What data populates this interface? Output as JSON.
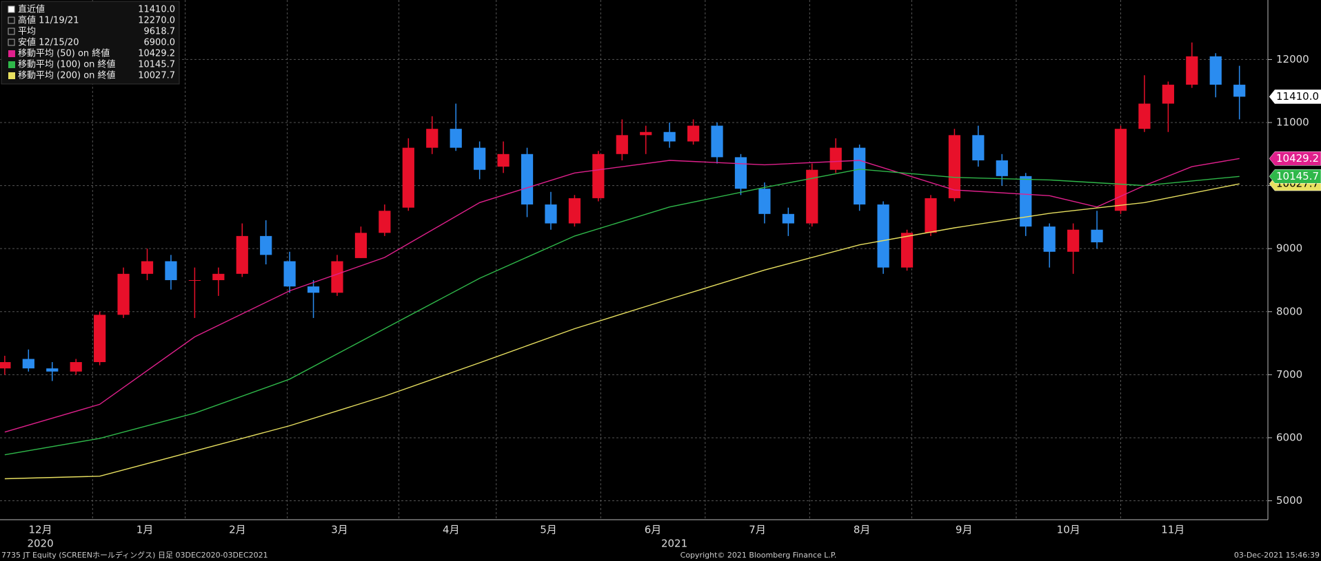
{
  "chart_data": {
    "type": "candlestick",
    "up_color": "#e8102a",
    "down_color": "#2a8cf0",
    "open": [
      7100,
      7250,
      7100,
      7050,
      7200,
      7950,
      8600,
      8800,
      8500,
      8500,
      8600,
      9200,
      8800,
      8400,
      8300,
      8850,
      9250,
      9650,
      10600,
      10900,
      10600,
      10300,
      10500,
      9700,
      9400,
      9800,
      10500,
      10800,
      10850,
      10700,
      10950,
      10450,
      9950,
      9550,
      9400,
      10250,
      10600,
      9700,
      8700,
      9250,
      9800,
      10800,
      10400,
      10150,
      9350,
      8950,
      9300,
      9600,
      10900,
      11300,
      11600,
      12050,
      11600
    ],
    "high": [
      7300,
      7400,
      7200,
      7250,
      8000,
      8700,
      9000,
      8900,
      8700,
      8700,
      9400,
      9450,
      8950,
      8500,
      8900,
      9350,
      9700,
      10750,
      11100,
      11300,
      10700,
      10700,
      10600,
      9900,
      9850,
      10550,
      11050,
      10950,
      11000,
      11050,
      11000,
      10500,
      10050,
      9650,
      10350,
      10750,
      10650,
      9750,
      9300,
      9850,
      10900,
      10950,
      10500,
      10200,
      9400,
      9400,
      9600,
      10950,
      11750,
      11650,
      12270,
      12100,
      11900
    ],
    "low": [
      7000,
      7050,
      6900,
      7000,
      7150,
      7900,
      8500,
      8350,
      7900,
      8250,
      8550,
      8750,
      8300,
      7900,
      8250,
      8850,
      9200,
      9600,
      10500,
      10550,
      10100,
      10200,
      9500,
      9300,
      9350,
      9750,
      10400,
      10500,
      10600,
      10650,
      10350,
      9850,
      9400,
      9200,
      9350,
      10200,
      9600,
      8600,
      8650,
      9200,
      9750,
      10300,
      10000,
      9200,
      8700,
      8600,
      9000,
      9550,
      10850,
      10850,
      11550,
      11400,
      11050
    ],
    "close": [
      7200,
      7100,
      7050,
      7200,
      7950,
      8600,
      8800,
      8500,
      8500,
      8600,
      9200,
      8900,
      8400,
      8300,
      8800,
      9250,
      9600,
      10600,
      10900,
      10600,
      10250,
      10500,
      9700,
      9400,
      9800,
      10500,
      10800,
      10850,
      10700,
      10950,
      10450,
      9950,
      9550,
      9400,
      10250,
      10600,
      9700,
      8700,
      9250,
      9800,
      10800,
      10400,
      10150,
      9350,
      8950,
      9300,
      9100,
      10900,
      11300,
      11600,
      12050,
      11600,
      11410
    ],
    "lines": [
      {
        "name": "移動平均 (50) on 終値",
        "color": "#e0208c",
        "x": [
          0,
          4,
          8,
          12,
          16,
          20,
          24,
          28,
          32,
          36,
          40,
          44,
          46,
          48,
          50,
          52
        ],
        "values": [
          6090,
          6530,
          7600,
          8330,
          8860,
          9730,
          10200,
          10400,
          10330,
          10400,
          9930,
          9840,
          9660,
          10000,
          10300,
          10429.2
        ]
      },
      {
        "name": "移動平均 (100) on 終値",
        "color": "#2fb84a",
        "x": [
          0,
          4,
          8,
          12,
          16,
          20,
          24,
          28,
          32,
          36,
          40,
          44,
          48,
          52
        ],
        "values": [
          5730,
          5990,
          6390,
          6930,
          7730,
          8530,
          9200,
          9660,
          9970,
          10260,
          10130,
          10090,
          10000,
          10145.7
        ]
      },
      {
        "name": "移動平均 (200) on 終値",
        "color": "#e8e060",
        "x": [
          0,
          4,
          8,
          12,
          16,
          20,
          24,
          28,
          32,
          36,
          40,
          44,
          48,
          52
        ],
        "values": [
          5350,
          5390,
          5790,
          6190,
          6660,
          7190,
          7730,
          8200,
          8660,
          9060,
          9330,
          9560,
          9730,
          10027.7
        ]
      }
    ],
    "ylim": [
      4700,
      12900
    ],
    "yticks": [
      5000,
      6000,
      7000,
      8000,
      9000,
      10000,
      11000,
      12000
    ],
    "xlim": [
      -0.2,
      53.2
    ],
    "xticks": [
      {
        "value": 1.5,
        "label": "12月"
      },
      {
        "value": 5.9,
        "label": "1月"
      },
      {
        "value": 9.8,
        "label": "2月"
      },
      {
        "value": 14.1,
        "label": "3月"
      },
      {
        "value": 18.8,
        "label": "4月"
      },
      {
        "value": 22.9,
        "label": "5月"
      },
      {
        "value": 27.3,
        "label": "6月"
      },
      {
        "value": 31.7,
        "label": "7月"
      },
      {
        "value": 36.1,
        "label": "8月"
      },
      {
        "value": 40.4,
        "label": "9月"
      },
      {
        "value": 44.8,
        "label": "10月"
      },
      {
        "value": 49.2,
        "label": "11月"
      }
    ],
    "years": [
      {
        "value": 1.5,
        "label": "2020"
      },
      {
        "value": 28.2,
        "label": "2021"
      }
    ],
    "last_tag": {
      "value": 11410,
      "label": "11410.0"
    },
    "line_tags": [
      "10429.2",
      "10145.7",
      "10027.7"
    ],
    "legend": [
      {
        "label": "直近値",
        "value": "11410.0"
      },
      {
        "label": "高値 11/19/21",
        "value": "12270.0"
      },
      {
        "label": "平均",
        "value": "9618.7"
      },
      {
        "label": "安値 12/15/20",
        "value": "6900.0"
      }
    ],
    "footer_left": "7735 JT Equity (SCREENホールディングス) 日足 03DEC2020-03DEC2021",
    "footer_center": "Copyright© 2021 Bloomberg Finance L.P.",
    "footer_right": "03-Dec-2021 15:46:39",
    "grid": true
  }
}
